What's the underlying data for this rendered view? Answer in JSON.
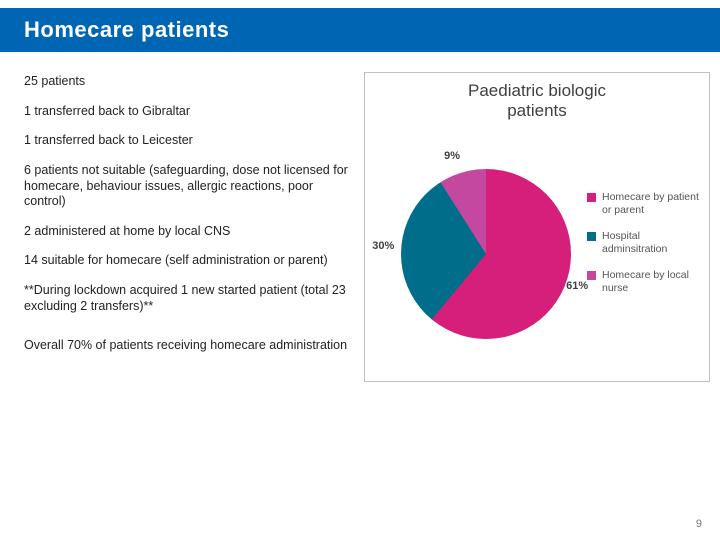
{
  "title": "Homecare patients",
  "bullets": [
    "25 patients",
    "1 transferred back to Gibraltar",
    "1 transferred back to Leicester",
    "6 patients not suitable (safeguarding, dose not licensed for homecare, behaviour issues, allergic reactions, poor control)",
    "2 administered at home by local CNS",
    "14 suitable for homecare (self administration or parent)",
    "**During lockdown acquired 1 new started patient (total 23 excluding 2 transfers)**",
    "Overall 70% of patients receiving homecare administration"
  ],
  "chart": {
    "type": "pie",
    "title_line1": "Paediatric biologic",
    "title_line2": "patients",
    "title_fontsize": 17,
    "title_color": "#404040",
    "background_color": "#ffffff",
    "border_color": "#bfbfbf",
    "slices": [
      {
        "label": "Homecare by patient or parent",
        "value": 61,
        "display": "61%",
        "color": "#d61f7a"
      },
      {
        "label": "Hospital adminsitration",
        "value": 30,
        "display": "30%",
        "color": "#006e8a"
      },
      {
        "label": "Homecare by local nurse",
        "value": 9,
        "display": "9%",
        "color": "#c4489f"
      }
    ],
    "label_fontsize": 11,
    "label_color": "#404040",
    "legend_fontsize": 10.5,
    "legend_color": "#555555",
    "start_angle_deg": 0
  },
  "page_number": "9",
  "colors": {
    "title_bar": "#0066b3",
    "title_text": "#ffffff",
    "body_text": "#222222"
  }
}
